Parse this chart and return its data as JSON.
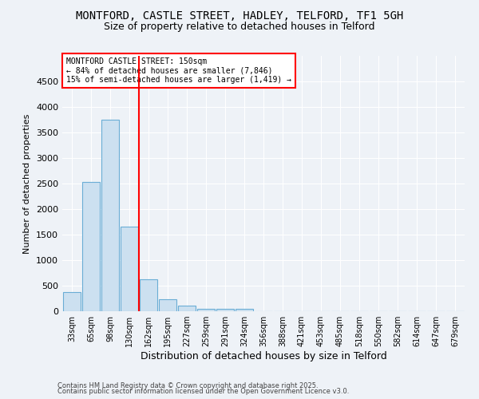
{
  "title": "MONTFORD, CASTLE STREET, HADLEY, TELFORD, TF1 5GH",
  "subtitle": "Size of property relative to detached houses in Telford",
  "xlabel": "Distribution of detached houses by size in Telford",
  "ylabel": "Number of detached properties",
  "bar_labels": [
    "33sqm",
    "65sqm",
    "98sqm",
    "130sqm",
    "162sqm",
    "195sqm",
    "227sqm",
    "259sqm",
    "291sqm",
    "324sqm",
    "356sqm",
    "388sqm",
    "421sqm",
    "453sqm",
    "485sqm",
    "518sqm",
    "550sqm",
    "582sqm",
    "614sqm",
    "647sqm",
    "679sqm"
  ],
  "bar_values": [
    370,
    2530,
    3750,
    1650,
    620,
    230,
    105,
    50,
    40,
    40,
    0,
    0,
    0,
    0,
    0,
    0,
    0,
    0,
    0,
    0,
    0
  ],
  "bar_color": "#cce0f0",
  "bar_edge_color": "#6aadd5",
  "vline_color": "red",
  "ylim": [
    0,
    5000
  ],
  "yticks": [
    0,
    500,
    1000,
    1500,
    2000,
    2500,
    3000,
    3500,
    4000,
    4500
  ],
  "annotation_line1": "MONTFORD CASTLE STREET: 150sqm",
  "annotation_line2": "← 84% of detached houses are smaller (7,846)",
  "annotation_line3": "15% of semi-detached houses are larger (1,419) →",
  "annotation_box_color": "white",
  "annotation_box_edge_color": "red",
  "footer1": "Contains HM Land Registry data © Crown copyright and database right 2025.",
  "footer2": "Contains public sector information licensed under the Open Government Licence v3.0.",
  "bg_color": "#eef2f7",
  "grid_color": "#ffffff",
  "title_fontsize": 10,
  "subtitle_fontsize": 9
}
